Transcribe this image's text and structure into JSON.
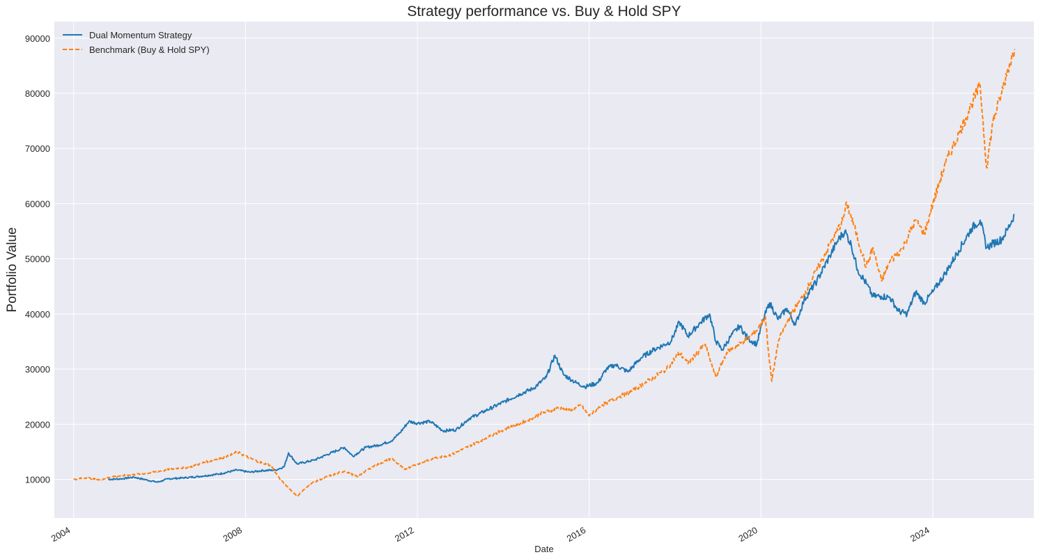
{
  "chart_data": {
    "type": "line",
    "title": "Strategy performance vs. Buy & Hold SPY",
    "xlabel": "Date",
    "ylabel": "Portfolio Value",
    "xlim": [
      2003.55,
      2026.35
    ],
    "ylim": [
      3000,
      93000
    ],
    "xticks": [
      2004,
      2008,
      2012,
      2016,
      2020,
      2024
    ],
    "xtick_labels": [
      "2004",
      "2008",
      "2012",
      "2016",
      "2020",
      "2024"
    ],
    "yticks": [
      10000,
      20000,
      30000,
      40000,
      50000,
      60000,
      70000,
      80000,
      90000
    ],
    "ytick_labels": [
      "10000",
      "20000",
      "30000",
      "40000",
      "50000",
      "60000",
      "70000",
      "80000",
      "90000"
    ],
    "grid": true,
    "legend_position": "upper-left",
    "background_color": "#eaeaf2",
    "grid_color": "#ffffff",
    "series": [
      {
        "name": "Dual Momentum Strategy",
        "color": "#1f77b4",
        "style": "solid",
        "points": [
          [
            2004.8,
            10000
          ],
          [
            2005.1,
            10100
          ],
          [
            2005.4,
            10400
          ],
          [
            2005.7,
            9900
          ],
          [
            2005.95,
            9500
          ],
          [
            2006.2,
            10100
          ],
          [
            2006.6,
            10300
          ],
          [
            2007.0,
            10600
          ],
          [
            2007.4,
            11000
          ],
          [
            2007.8,
            11700
          ],
          [
            2008.1,
            11300
          ],
          [
            2008.4,
            11600
          ],
          [
            2008.7,
            11700
          ],
          [
            2008.9,
            12300
          ],
          [
            2009.0,
            14800
          ],
          [
            2009.2,
            12800
          ],
          [
            2009.6,
            13500
          ],
          [
            2009.9,
            14500
          ],
          [
            2010.3,
            15800
          ],
          [
            2010.5,
            14200
          ],
          [
            2010.8,
            15800
          ],
          [
            2011.1,
            16200
          ],
          [
            2011.4,
            17000
          ],
          [
            2011.6,
            18500
          ],
          [
            2011.8,
            20500
          ],
          [
            2012.0,
            20200
          ],
          [
            2012.3,
            20500
          ],
          [
            2012.6,
            18800
          ],
          [
            2012.9,
            19000
          ],
          [
            2013.2,
            21000
          ],
          [
            2013.6,
            22500
          ],
          [
            2014.0,
            24000
          ],
          [
            2014.4,
            25500
          ],
          [
            2014.7,
            26500
          ],
          [
            2015.0,
            28500
          ],
          [
            2015.2,
            32500
          ],
          [
            2015.4,
            29000
          ],
          [
            2015.6,
            28000
          ],
          [
            2015.7,
            27500
          ],
          [
            2015.9,
            26800
          ],
          [
            2016.2,
            27500
          ],
          [
            2016.4,
            30000
          ],
          [
            2016.6,
            30800
          ],
          [
            2016.9,
            29500
          ],
          [
            2017.2,
            32000
          ],
          [
            2017.5,
            33500
          ],
          [
            2017.9,
            35000
          ],
          [
            2018.1,
            38500
          ],
          [
            2018.3,
            36000
          ],
          [
            2018.6,
            38500
          ],
          [
            2018.8,
            40000
          ],
          [
            2018.95,
            35000
          ],
          [
            2019.1,
            33500
          ],
          [
            2019.3,
            36000
          ],
          [
            2019.5,
            37800
          ],
          [
            2019.7,
            35500
          ],
          [
            2019.9,
            34500
          ],
          [
            2020.05,
            39000
          ],
          [
            2020.2,
            42000
          ],
          [
            2020.4,
            39000
          ],
          [
            2020.6,
            41000
          ],
          [
            2020.8,
            38000
          ],
          [
            2021.0,
            42500
          ],
          [
            2021.3,
            46000
          ],
          [
            2021.6,
            50500
          ],
          [
            2021.8,
            53500
          ],
          [
            2021.95,
            55000
          ],
          [
            2022.1,
            52500
          ],
          [
            2022.25,
            48000
          ],
          [
            2022.45,
            45500
          ],
          [
            2022.6,
            43200
          ],
          [
            2022.8,
            43200
          ],
          [
            2023.0,
            43000
          ],
          [
            2023.2,
            40500
          ],
          [
            2023.4,
            40000
          ],
          [
            2023.6,
            44000
          ],
          [
            2023.8,
            42000
          ],
          [
            2024.0,
            44000
          ],
          [
            2024.3,
            47500
          ],
          [
            2024.6,
            51500
          ],
          [
            2024.9,
            55500
          ],
          [
            2025.1,
            57000
          ],
          [
            2025.25,
            52000
          ],
          [
            2025.4,
            52800
          ],
          [
            2025.6,
            53500
          ],
          [
            2025.75,
            55500
          ],
          [
            2025.9,
            58000
          ]
        ]
      },
      {
        "name": "Benchmark (Buy & Hold SPY)",
        "color": "#ff7f0e",
        "style": "dashed",
        "points": [
          [
            2004.0,
            10000
          ],
          [
            2004.3,
            10300
          ],
          [
            2004.6,
            9900
          ],
          [
            2004.9,
            10500
          ],
          [
            2005.3,
            10800
          ],
          [
            2005.7,
            11100
          ],
          [
            2006.0,
            11500
          ],
          [
            2006.4,
            12000
          ],
          [
            2006.7,
            12200
          ],
          [
            2007.0,
            13000
          ],
          [
            2007.3,
            13600
          ],
          [
            2007.6,
            14200
          ],
          [
            2007.8,
            15000
          ],
          [
            2008.0,
            14200
          ],
          [
            2008.3,
            13200
          ],
          [
            2008.6,
            12500
          ],
          [
            2008.8,
            10000
          ],
          [
            2009.0,
            8500
          ],
          [
            2009.2,
            6900
          ],
          [
            2009.5,
            9200
          ],
          [
            2009.9,
            10500
          ],
          [
            2010.3,
            11500
          ],
          [
            2010.6,
            10500
          ],
          [
            2011.0,
            12500
          ],
          [
            2011.4,
            13800
          ],
          [
            2011.7,
            11800
          ],
          [
            2012.0,
            12800
          ],
          [
            2012.4,
            13800
          ],
          [
            2012.8,
            14500
          ],
          [
            2013.2,
            16000
          ],
          [
            2013.6,
            17500
          ],
          [
            2014.0,
            19000
          ],
          [
            2014.5,
            20500
          ],
          [
            2014.9,
            22000
          ],
          [
            2015.3,
            23000
          ],
          [
            2015.6,
            22500
          ],
          [
            2015.8,
            23500
          ],
          [
            2016.0,
            21500
          ],
          [
            2016.3,
            23500
          ],
          [
            2016.7,
            25000
          ],
          [
            2017.0,
            26000
          ],
          [
            2017.4,
            28000
          ],
          [
            2017.8,
            30000
          ],
          [
            2018.1,
            33000
          ],
          [
            2018.3,
            31000
          ],
          [
            2018.7,
            34500
          ],
          [
            2018.95,
            28500
          ],
          [
            2019.2,
            33000
          ],
          [
            2019.6,
            35000
          ],
          [
            2019.9,
            37000
          ],
          [
            2020.1,
            39500
          ],
          [
            2020.2,
            31000
          ],
          [
            2020.25,
            27800
          ],
          [
            2020.4,
            35000
          ],
          [
            2020.7,
            40000
          ],
          [
            2021.0,
            43500
          ],
          [
            2021.3,
            48000
          ],
          [
            2021.6,
            52500
          ],
          [
            2021.9,
            57000
          ],
          [
            2022.0,
            60000
          ],
          [
            2022.2,
            55000
          ],
          [
            2022.45,
            48500
          ],
          [
            2022.6,
            52000
          ],
          [
            2022.8,
            46000
          ],
          [
            2023.0,
            49500
          ],
          [
            2023.3,
            52000
          ],
          [
            2023.6,
            57000
          ],
          [
            2023.8,
            54500
          ],
          [
            2024.0,
            60000
          ],
          [
            2024.3,
            67500
          ],
          [
            2024.6,
            72500
          ],
          [
            2024.9,
            78000
          ],
          [
            2025.1,
            81500
          ],
          [
            2025.25,
            66500
          ],
          [
            2025.4,
            75000
          ],
          [
            2025.6,
            80000
          ],
          [
            2025.75,
            84500
          ],
          [
            2025.9,
            88000
          ]
        ]
      }
    ]
  }
}
